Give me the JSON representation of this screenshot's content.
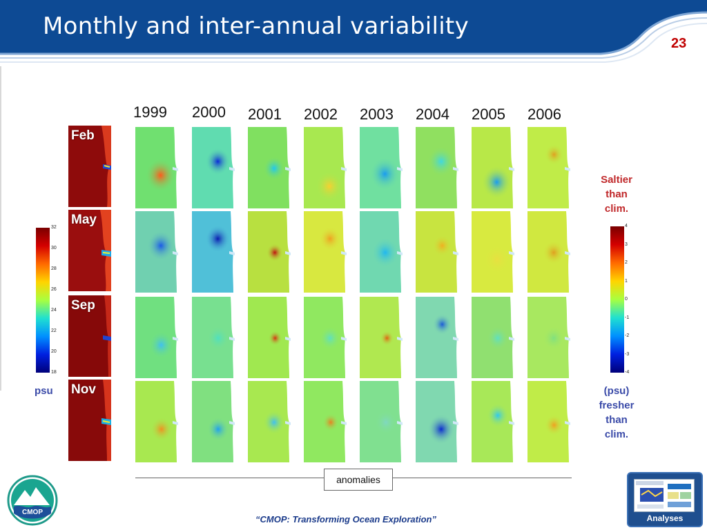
{
  "slide": {
    "title": "Monthly and inter-annual variability",
    "page_number": "23",
    "tagline": "“CMOP: Transforming Ocean Exploration”"
  },
  "years": [
    "1999",
    "2000",
    "2001",
    "2002",
    "2003",
    "2004",
    "2005",
    "2006"
  ],
  "months": [
    "Feb",
    "May",
    "Sep",
    "Nov"
  ],
  "left_colorbar": {
    "ticks": [
      "32",
      "30",
      "28",
      "26",
      "24",
      "22",
      "20",
      "18"
    ],
    "unit": "psu"
  },
  "right_colorbar": {
    "ticks": [
      "4",
      "3",
      "2",
      "1",
      "0",
      "-1",
      "-2",
      "-3",
      "-4"
    ],
    "top_label": [
      "Saltier",
      "than",
      "clim."
    ],
    "bottom_label": [
      "(psu)",
      "fresher",
      "than",
      "clim."
    ]
  },
  "anomalies_label": "anomalies",
  "logo_text": "CMOP",
  "analyses_button": "Analyses",
  "colors": {
    "header_blue": "#0d4a94",
    "accent_red": "#c00000",
    "saltier_red": "#c0282a",
    "fresher_blue": "#3a4aa8"
  }
}
